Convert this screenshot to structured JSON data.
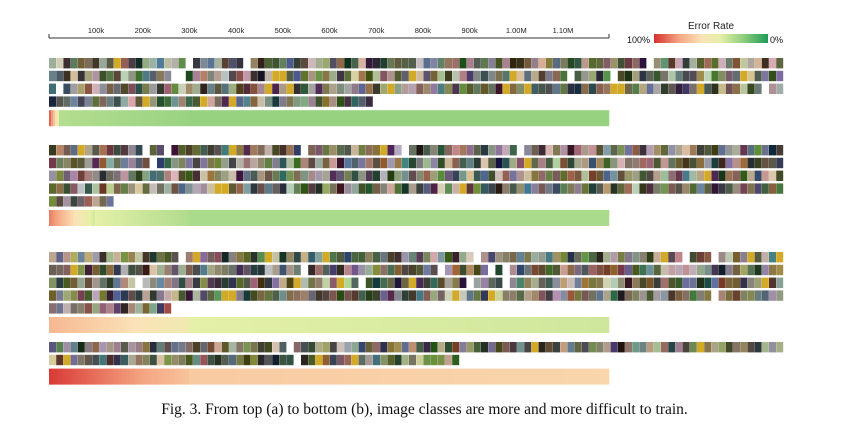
{
  "axis": {
    "tick_labels": [
      "100k",
      "200k",
      "300k",
      "400k",
      "500k",
      "600k",
      "700k",
      "800k",
      "900k",
      "1.00M",
      "1.10M"
    ],
    "range": [
      0,
      1200000
    ]
  },
  "legend": {
    "title": "Error Rate",
    "min_label": "100%",
    "max_label": "0%",
    "colors": [
      "#d7302f",
      "#f4a582",
      "#fbe3b8",
      "#e5f0a8",
      "#8fcf7d",
      "#1e9a56"
    ]
  },
  "caption": "Fig. 3.  From top (a) to bottom (b), image classes are more and more difficult to train.",
  "groups": [
    {
      "name": "group-1",
      "image_rows": 4,
      "last_row_fraction": 0.44,
      "error_profile": "easy"
    },
    {
      "name": "group-2",
      "image_rows": 5,
      "last_row_fraction": 0.09,
      "error_profile": "medium-easy"
    },
    {
      "name": "group-3",
      "image_rows": 5,
      "last_row_fraction": 0.17,
      "error_profile": "medium-hard"
    },
    {
      "name": "group-4",
      "image_rows": 2,
      "last_row_fraction": 0.56,
      "error_profile": "hard"
    }
  ]
}
